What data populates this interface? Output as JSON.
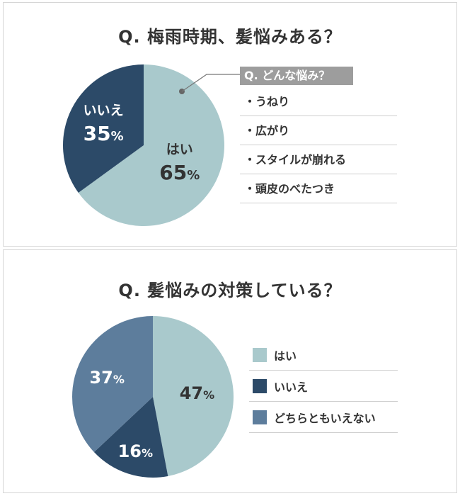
{
  "chart_data": [
    {
      "type": "pie",
      "title": "Q. 梅雨時期、髪悩みある？",
      "slices": [
        {
          "label": "はい",
          "value": 65,
          "color": "#a9c9cc",
          "text_color": "#333333"
        },
        {
          "label": "いいえ",
          "value": 35,
          "color": "#2c4a68",
          "text_color": "#ffffff"
        }
      ],
      "percent_suffix": "%",
      "callout": {
        "title": "Q. どんな悩み？",
        "items": [
          "・うねり",
          "・広がり",
          "・スタイルが崩れる",
          "・頭皮のべたつき"
        ]
      }
    },
    {
      "type": "pie",
      "title": "Q. 髪悩みの対策している？",
      "slices": [
        {
          "label": "はい",
          "value": 47,
          "color": "#a9c9cc",
          "text_color": "#333333"
        },
        {
          "label": "いいえ",
          "value": 16,
          "color": "#2c4a68",
          "text_color": "#ffffff"
        },
        {
          "label": "どちらともいえない",
          "value": 37,
          "color": "#5d7d9c",
          "text_color": "#ffffff"
        }
      ],
      "percent_suffix": "%",
      "legend_position": "right"
    }
  ]
}
